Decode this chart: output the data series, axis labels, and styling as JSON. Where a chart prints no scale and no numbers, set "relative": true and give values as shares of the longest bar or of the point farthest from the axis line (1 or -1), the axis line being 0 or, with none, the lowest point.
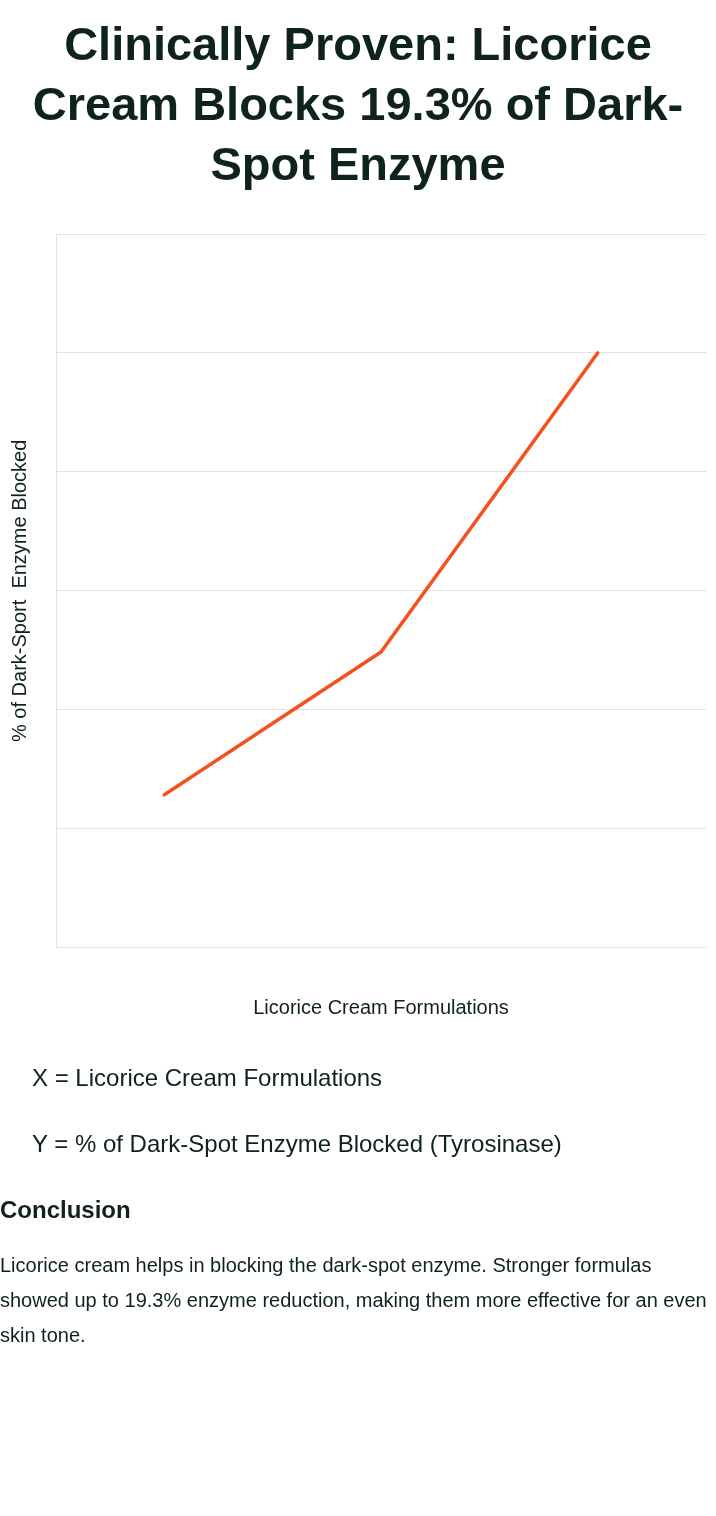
{
  "chart_data": {
    "type": "line",
    "title": "Clinically Proven: Licorice Cream Blocks 19.3% of Dark-Spot Enzyme",
    "xlabel": "Licorice Cream Formulations",
    "ylabel": "% of Dark-Sport  Enzyme Blocked",
    "relative": true,
    "categories": [
      null,
      null,
      null
    ],
    "series": [
      {
        "color": "#f4511e",
        "values": [
          0.257,
          0.497,
          1
        ]
      }
    ],
    "grid": "y",
    "legend": false,
    "marker": "none",
    "line_style": "solid",
    "annotations": [
      "X = Licorice Cream Formulations",
      "Y = % of Dark-Spot Enzyme Blocked (Tyrosinase)",
      "Conclusion",
      "Licorice cream helps in blocking the dark-spot enzyme. Stronger formulas showed up to 19.3% enzyme reduction, making them more effective for an even skin tone."
    ]
  }
}
